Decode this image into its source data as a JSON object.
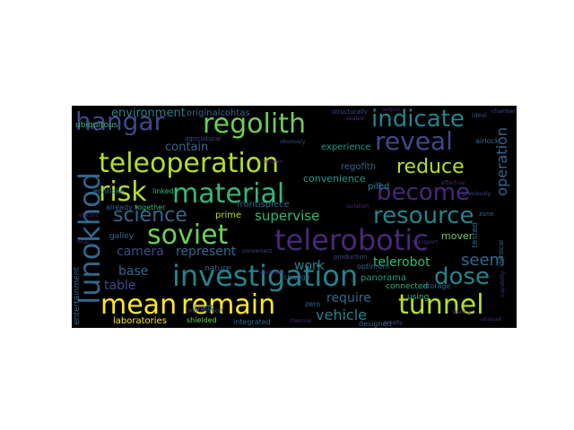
{
  "background_color": "#000000",
  "palette": [
    "#fde725",
    "#b5de2b",
    "#6ece58",
    "#35b779",
    "#1f9e89",
    "#26828e",
    "#31688e",
    "#3e4989",
    "#482878",
    "#440154"
  ],
  "words": [
    {
      "text": "hangar",
      "color": "#3e4989"
    },
    {
      "text": "regolith",
      "color": "#6ece58"
    },
    {
      "text": "indicate",
      "color": "#26828e"
    },
    {
      "text": "reveal",
      "color": "#3e4989"
    },
    {
      "text": "teleoperation",
      "color": "#b5de2b"
    },
    {
      "text": "reduce",
      "color": "#b5de2b"
    },
    {
      "text": "risk",
      "color": "#b5de2b"
    },
    {
      "text": "material",
      "color": "#35b779"
    },
    {
      "text": "become",
      "color": "#482878"
    },
    {
      "text": "lunokhod",
      "color": "#31688e"
    },
    {
      "text": "science",
      "color": "#31688e"
    },
    {
      "text": "resource",
      "color": "#26828e"
    },
    {
      "text": "soviet",
      "color": "#6ece58"
    },
    {
      "text": "telerobotic",
      "color": "#482878"
    },
    {
      "text": "investigation",
      "color": "#26828e"
    },
    {
      "text": "dose",
      "color": "#26828e"
    },
    {
      "text": "mean",
      "color": "#fde725"
    },
    {
      "text": "remain",
      "color": "#fde725"
    },
    {
      "text": "tunnel",
      "color": "#b5de2b"
    },
    {
      "text": "environment",
      "color": "#26828e"
    },
    {
      "text": "originalcohtas",
      "color": "#31688e"
    },
    {
      "text": "contain",
      "color": "#31688e"
    },
    {
      "text": "camera",
      "color": "#3e4989"
    },
    {
      "text": "represent",
      "color": "#31688e"
    },
    {
      "text": "supervise",
      "color": "#35b779"
    },
    {
      "text": "telerobot",
      "color": "#35b779"
    },
    {
      "text": "seem",
      "color": "#31688e"
    },
    {
      "text": "work",
      "color": "#26828e"
    },
    {
      "text": "base",
      "color": "#31688e"
    },
    {
      "text": "table",
      "color": "#3e4989"
    },
    {
      "text": "require",
      "color": "#31688e"
    },
    {
      "text": "vehicle",
      "color": "#26828e"
    },
    {
      "text": "operation",
      "color": "#31688e"
    },
    {
      "text": "experience",
      "color": "#1f9e89"
    },
    {
      "text": "regofith",
      "color": "#31688e"
    },
    {
      "text": "convenience",
      "color": "#1f9e89"
    },
    {
      "text": "piled",
      "color": "#26828e"
    },
    {
      "text": "frontispiece",
      "color": "#31688e"
    },
    {
      "text": "ubiquitous",
      "color": "#35b779"
    },
    {
      "text": "prime",
      "color": "#b5de2b"
    },
    {
      "text": "entertainment",
      "color": "#31688e"
    },
    {
      "text": "laboratories",
      "color": "#fde725"
    },
    {
      "text": "shielded",
      "color": "#6ece58"
    },
    {
      "text": "galley",
      "color": "#31688e"
    },
    {
      "text": "nature",
      "color": "#31688e"
    },
    {
      "text": "panorama",
      "color": "#1f9e89"
    },
    {
      "text": "mover",
      "color": "#6ece58"
    },
    {
      "text": "connected",
      "color": "#35b779"
    },
    {
      "text": "storage",
      "color": "#31688e"
    },
    {
      "text": "designed",
      "color": "#31688e"
    },
    {
      "text": "using",
      "color": "#35b779"
    },
    {
      "text": "tested",
      "color": "#31688e"
    },
    {
      "text": "together",
      "color": "#35b779"
    },
    {
      "text": "already",
      "color": "#31688e"
    },
    {
      "text": "linked",
      "color": "#35b779"
    },
    {
      "text": "enhricke",
      "color": "#26828e"
    },
    {
      "text": "change",
      "color": "#31688e"
    },
    {
      "text": "zero",
      "color": "#31688e"
    },
    {
      "text": "optimum",
      "color": "#31688e"
    },
    {
      "text": "integrated",
      "color": "#31688e"
    },
    {
      "text": "krafft",
      "color": "#31688e"
    },
    {
      "text": "airlock",
      "color": "#31688e"
    },
    {
      "text": "structurally",
      "color": "#3e4989"
    },
    {
      "text": "installation",
      "color": "#3e4989"
    },
    {
      "text": "agricultural",
      "color": "#3e4989"
    },
    {
      "text": "production",
      "color": "#3e4989"
    },
    {
      "text": "identical",
      "color": "#31688e"
    },
    {
      "text": "ideal",
      "color": "#3e4989"
    },
    {
      "text": "chamber",
      "color": "#3e4989"
    },
    {
      "text": "zone",
      "color": "#31688e"
    },
    {
      "text": "convenient",
      "color": "#3e4989"
    },
    {
      "text": "obviously",
      "color": "#3e4989"
    },
    {
      "text": "greatly",
      "color": "#3e4989"
    },
    {
      "text": "previously",
      "color": "#3e4989"
    },
    {
      "text": "capability",
      "color": "#482878"
    },
    {
      "text": "sealed",
      "color": "#482878"
    },
    {
      "text": "output",
      "color": "#482878"
    },
    {
      "text": "isolation",
      "color": "#482878"
    },
    {
      "text": "transport",
      "color": "#482878"
    },
    {
      "text": "exclusive",
      "color": "#482878"
    },
    {
      "text": "final",
      "color": "#482878"
    },
    {
      "text": "sealing",
      "color": "#482878"
    },
    {
      "text": "unusual",
      "color": "#482878"
    },
    {
      "text": "electric",
      "color": "#482878"
    },
    {
      "text": "complex",
      "color": "#482878"
    },
    {
      "text": "thermal",
      "color": "#482878"
    },
    {
      "text": "effective",
      "color": "#482878"
    }
  ]
}
